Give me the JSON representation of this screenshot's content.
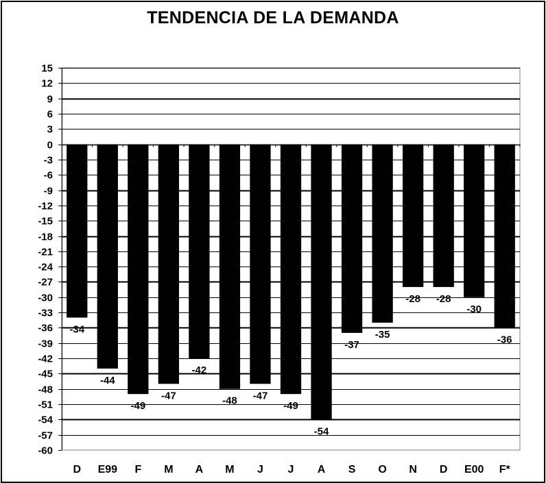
{
  "chart_data": {
    "type": "bar",
    "title": "TENDENCIA DE LA DEMANDA",
    "xlabel": "",
    "ylabel": "",
    "categories": [
      "D",
      "E99",
      "F",
      "M",
      "A",
      "M",
      "J",
      "J",
      "A",
      "S",
      "O",
      "N",
      "D",
      "E00",
      "F*"
    ],
    "values": [
      -34,
      -44,
      -49,
      -47,
      -42,
      -48,
      -47,
      -49,
      -54,
      -37,
      -35,
      -28,
      -28,
      -30,
      -36
    ],
    "ylim": [
      -60,
      15
    ],
    "yticks": [
      15,
      12,
      9,
      6,
      3,
      0,
      -3,
      -6,
      -9,
      -12,
      -15,
      -18,
      -21,
      -24,
      -27,
      -30,
      -33,
      -36,
      -39,
      -42,
      -45,
      -48,
      -51,
      -54,
      -57,
      -60
    ],
    "grid": true,
    "legend": "none",
    "bar_color": "#000000",
    "background": "#ffffff"
  }
}
